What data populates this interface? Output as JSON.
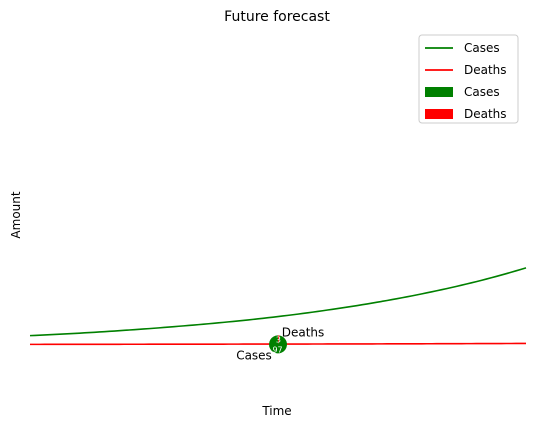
{
  "chart_data": {
    "type": "line",
    "title": "Future forecast",
    "xlabel": "Time",
    "ylabel": "Amount",
    "grid": false,
    "axes_visible": false,
    "legend_placement": "top-right",
    "xlim": [
      0,
      100
    ],
    "ylim": [
      -5,
      100
    ],
    "series": [
      {
        "name": "Cases",
        "color": "#008000",
        "x": [
          0,
          10,
          20,
          30,
          40,
          50,
          60,
          70,
          80,
          90,
          100
        ],
        "values": [
          2.8,
          3.6,
          4.6,
          5.8,
          7.2,
          8.9,
          11.0,
          13.5,
          16.5,
          20.1,
          24.5
        ]
      },
      {
        "name": "Deaths",
        "color": "#ff0000",
        "x": [
          0,
          10,
          20,
          30,
          40,
          50,
          60,
          70,
          80,
          90,
          100
        ],
        "values": [
          0.0,
          0.02,
          0.04,
          0.06,
          0.08,
          0.1,
          0.13,
          0.16,
          0.2,
          0.25,
          0.3
        ]
      }
    ],
    "pie": {
      "center": [
        50,
        0
      ],
      "slices": [
        {
          "name": "Cases",
          "value": 97,
          "color": "#008000",
          "label": "Cases",
          "pct_label": "97"
        },
        {
          "name": "Deaths",
          "value": 3,
          "color": "#ff0000",
          "label": "Deaths",
          "pct_label": "3"
        }
      ]
    },
    "legend": [
      {
        "label": "Cases",
        "kind": "line",
        "color": "#008000"
      },
      {
        "label": "Deaths",
        "kind": "line",
        "color": "#ff0000"
      },
      {
        "label": "Cases",
        "kind": "patch",
        "color": "#008000"
      },
      {
        "label": "Deaths",
        "kind": "patch",
        "color": "#ff0000"
      }
    ]
  }
}
